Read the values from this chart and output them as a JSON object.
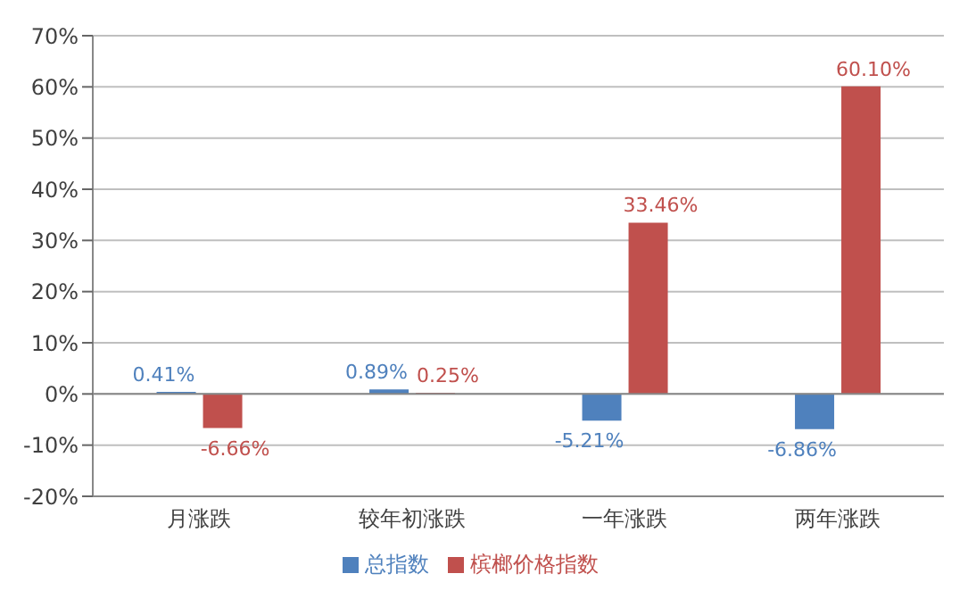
{
  "chart_data": {
    "type": "bar",
    "categories": [
      "月涨跌",
      "较年初涨跌",
      "一年涨跌",
      "两年涨跌"
    ],
    "series": [
      {
        "name": "总指数",
        "color": "#4f81bd",
        "values": [
          0.41,
          0.89,
          -5.21,
          -6.86
        ],
        "value_labels": [
          "0.41%",
          "0.89%",
          "-5.21%",
          "-6.86%"
        ]
      },
      {
        "name": "槟榔价格指数",
        "color": "#c0504d",
        "values": [
          -6.66,
          0.25,
          33.46,
          60.1
        ],
        "value_labels": [
          "-6.66%",
          "0.25%",
          "33.46%",
          "60.10%"
        ]
      }
    ],
    "ylim": [
      -20,
      70
    ],
    "yticks": [
      {
        "value": -20,
        "label": "-20%"
      },
      {
        "value": -10,
        "label": "-10%"
      },
      {
        "value": 0,
        "label": "0%"
      },
      {
        "value": 10,
        "label": "10%"
      },
      {
        "value": 20,
        "label": "20%"
      },
      {
        "value": 30,
        "label": "30%"
      },
      {
        "value": 40,
        "label": "40%"
      },
      {
        "value": 50,
        "label": "50%"
      },
      {
        "value": 60,
        "label": "60%"
      },
      {
        "value": 70,
        "label": "70%"
      }
    ],
    "grid": "y",
    "legend": "bottom"
  }
}
